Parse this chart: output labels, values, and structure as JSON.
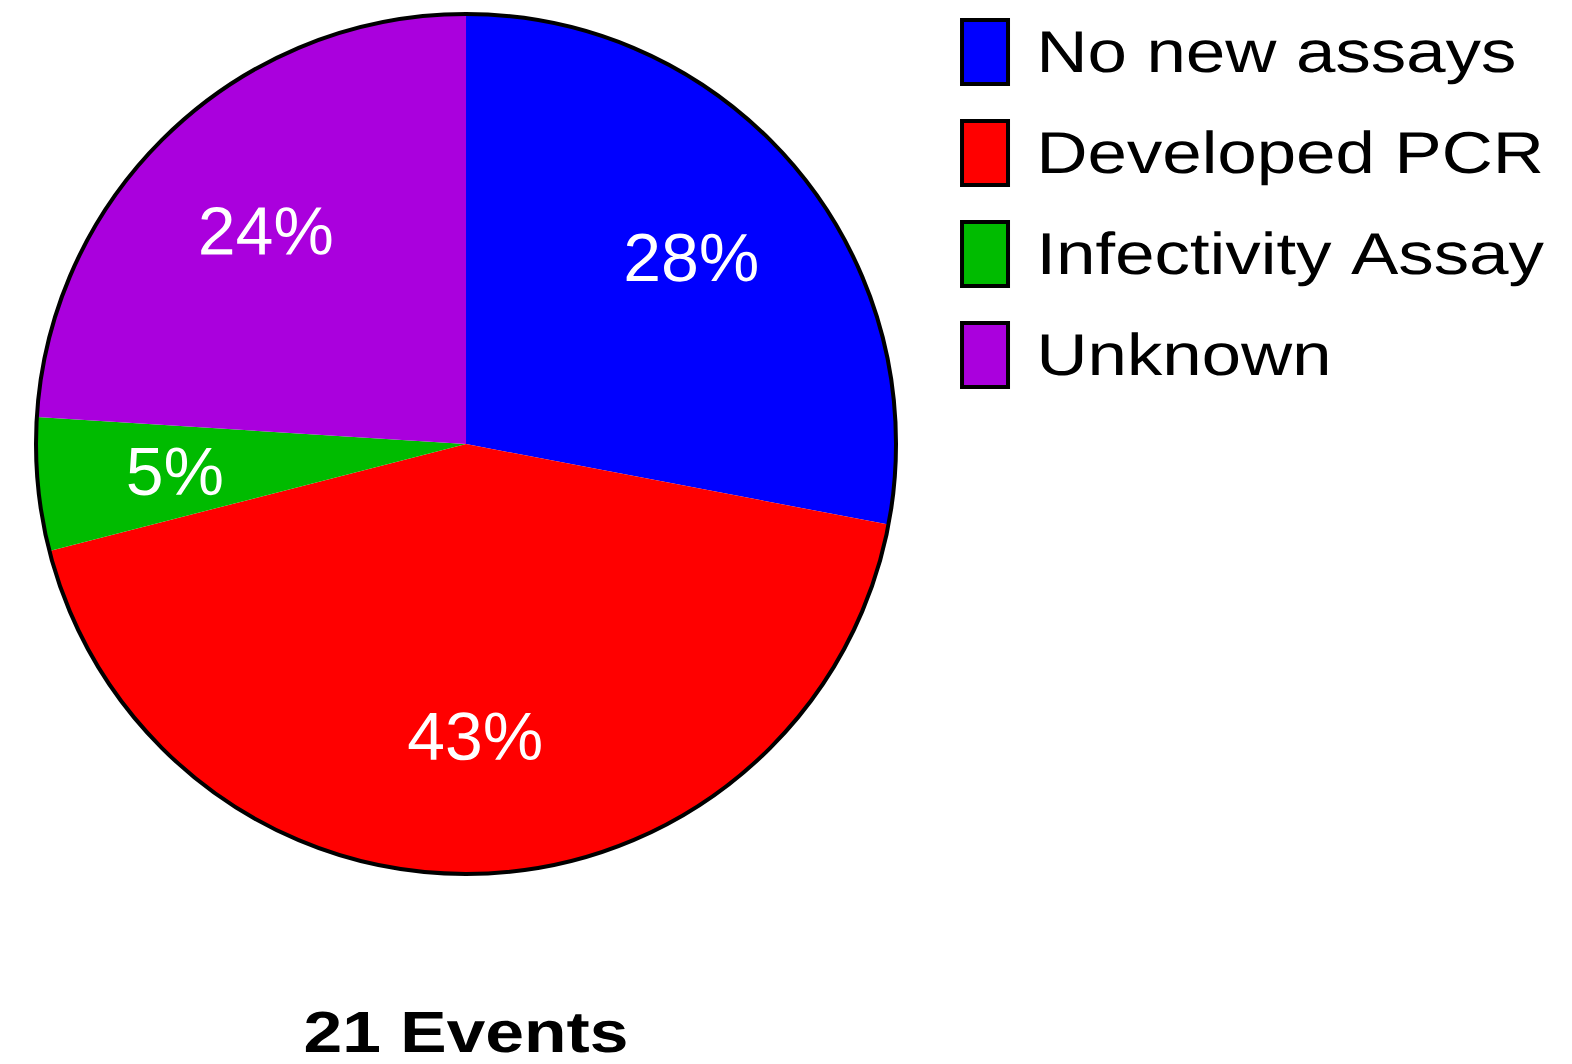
{
  "chart_data": {
    "type": "pie",
    "title": "21 Events",
    "categories": [
      "No new assays",
      "Developed PCR",
      "Infectivity Assay",
      "Unknown"
    ],
    "values": [
      28,
      43,
      5,
      24
    ],
    "value_labels": [
      "28%",
      "43%",
      "5%",
      "24%"
    ],
    "colors": [
      "#0000ff",
      "#ff0000",
      "#00bb00",
      "#aa00dd"
    ],
    "legend": "top right"
  }
}
